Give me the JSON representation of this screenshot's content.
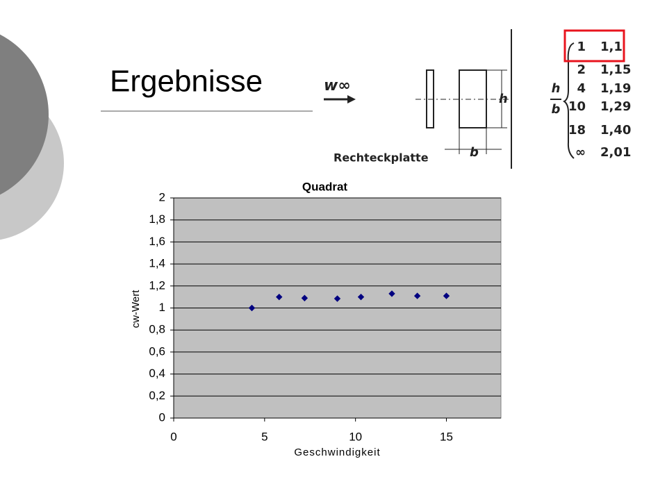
{
  "title": "Ergebnisse",
  "figure": {
    "flow_label": "w∞",
    "dimension_h": "h",
    "dimension_b": "b",
    "caption": "Rechteckplatte",
    "table": {
      "ratio_numerator": "h",
      "ratio_denominator": "b",
      "rows": [
        [
          "1",
          "1,1"
        ],
        [
          "2",
          "1,15"
        ],
        [
          "4",
          "1,19"
        ],
        [
          "10",
          "1,29"
        ],
        [
          "18",
          "1,40"
        ],
        [
          "∞",
          "2,01"
        ]
      ]
    }
  },
  "chart_data": {
    "type": "scatter",
    "title": "Quadrat",
    "x_label": "Geschwindigkeit",
    "y_label": "cw-Wert",
    "x": [
      4.3,
      5.8,
      7.2,
      9.0,
      10.3,
      12.0,
      13.4,
      15.0
    ],
    "values": [
      1.0,
      1.1,
      1.09,
      1.085,
      1.1,
      1.13,
      1.11,
      1.11
    ],
    "color": "#000080",
    "marker": "diamond",
    "xlim": [
      0,
      18
    ],
    "xticks": [
      0,
      5,
      10,
      15
    ],
    "ylim": [
      0,
      2
    ],
    "yticks": [
      0,
      {
        "value": 0.2,
        "label": "0,2"
      },
      {
        "value": 0.4,
        "label": "0,4"
      },
      {
        "value": 0.6,
        "label": "0,6"
      },
      {
        "value": 0.8,
        "label": "0,8"
      },
      1,
      {
        "value": 1.2,
        "label": "1,2"
      },
      {
        "value": 1.4,
        "label": "1,4"
      },
      {
        "value": 1.6,
        "label": "1,6"
      },
      {
        "value": 1.8,
        "label": "1,8"
      },
      2
    ],
    "grid": true
  }
}
